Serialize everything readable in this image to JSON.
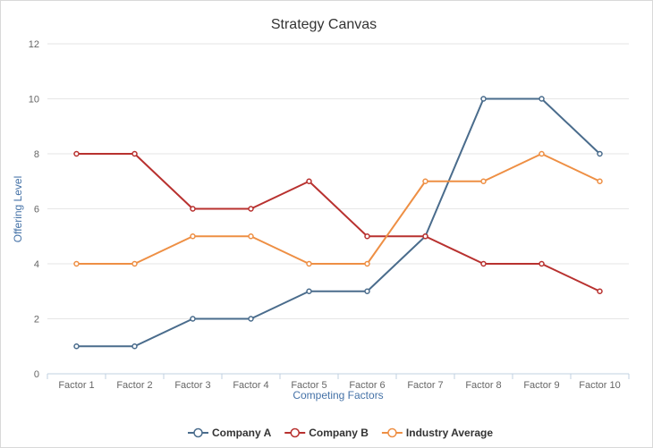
{
  "chart_data": {
    "type": "line",
    "title": "Strategy Canvas",
    "xlabel": "Competing Factors",
    "ylabel": "Offering Level",
    "categories": [
      "Factor 1",
      "Factor 2",
      "Factor 3",
      "Factor 4",
      "Factor 5",
      "Factor 6",
      "Factor 7",
      "Factor 8",
      "Factor 9",
      "Factor 10"
    ],
    "ylim": [
      0,
      12
    ],
    "yticks": [
      0,
      2,
      4,
      6,
      8,
      10,
      12
    ],
    "grid": true,
    "legend": "bottom",
    "series": [
      {
        "name": "Company A",
        "color": "#4a6c8c",
        "values": [
          1,
          1,
          2,
          2,
          3,
          3,
          5,
          10,
          10,
          8
        ]
      },
      {
        "name": "Company B",
        "color": "#b8312f",
        "values": [
          8,
          8,
          6,
          6,
          7,
          5,
          5,
          4,
          4,
          3
        ]
      },
      {
        "name": "Industry Average",
        "color": "#ee8f44",
        "values": [
          4,
          4,
          5,
          5,
          4,
          4,
          7,
          7,
          8,
          7
        ]
      }
    ]
  }
}
